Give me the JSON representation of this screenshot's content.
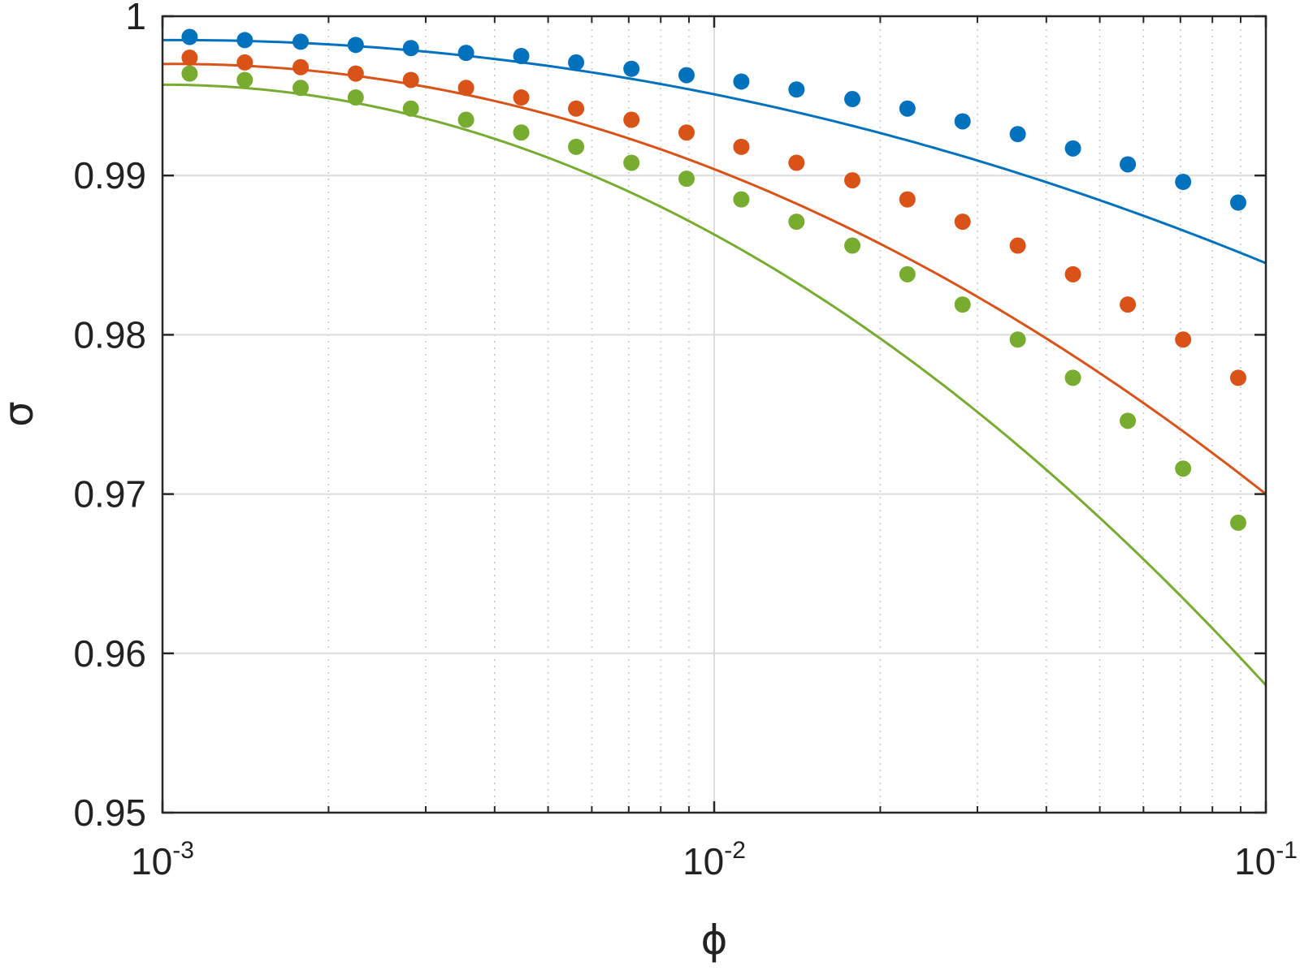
{
  "chart_data": {
    "type": "line",
    "xlabel": "ϕ",
    "ylabel": "σ",
    "xscale": "log",
    "xlim": [
      0.001,
      0.1
    ],
    "ylim": [
      0.95,
      1.0
    ],
    "grid": true,
    "x_ticks": [
      {
        "base": "10",
        "exp": "-3",
        "value": 0.001
      },
      {
        "base": "10",
        "exp": "-2",
        "value": 0.01
      },
      {
        "base": "10",
        "exp": "-1",
        "value": 0.1
      }
    ],
    "y_ticks": [
      {
        "label": "0.95",
        "value": 0.95
      },
      {
        "label": "0.96",
        "value": 0.96
      },
      {
        "label": "0.97",
        "value": 0.97
      },
      {
        "label": "0.98",
        "value": 0.98
      },
      {
        "label": "0.99",
        "value": 0.99
      },
      {
        "label": "1",
        "value": 1.0
      }
    ],
    "series": [
      {
        "color": "#0072BD",
        "line": {
          "x": [
            0.001,
            0.01,
            0.1
          ],
          "y": [
            0.9985,
            0.9951,
            0.9845
          ]
        },
        "points": {
          "x": [
            0.00112,
            0.00141,
            0.00178,
            0.00224,
            0.00282,
            0.00355,
            0.00447,
            0.00562,
            0.00708,
            0.00891,
            0.0112,
            0.0141,
            0.0178,
            0.0224,
            0.0282,
            0.0355,
            0.0447,
            0.0562,
            0.0708,
            0.0891
          ],
          "y": [
            0.9987,
            0.9985,
            0.9984,
            0.9982,
            0.998,
            0.9977,
            0.9975,
            0.9971,
            0.9967,
            0.9963,
            0.9959,
            0.9954,
            0.9948,
            0.9942,
            0.9934,
            0.9926,
            0.9917,
            0.9907,
            0.9896,
            0.9883
          ]
        }
      },
      {
        "color": "#D95319",
        "line": {
          "x": [
            0.001,
            0.01,
            0.1
          ],
          "y": [
            0.997,
            0.9904,
            0.97
          ]
        },
        "points": {
          "x": [
            0.00112,
            0.00141,
            0.00178,
            0.00224,
            0.00282,
            0.00355,
            0.00447,
            0.00562,
            0.00708,
            0.00891,
            0.0112,
            0.0141,
            0.0178,
            0.0224,
            0.0282,
            0.0355,
            0.0447,
            0.0562,
            0.0708,
            0.0891
          ],
          "y": [
            0.9974,
            0.9971,
            0.9968,
            0.9964,
            0.996,
            0.9955,
            0.9949,
            0.9942,
            0.9935,
            0.9927,
            0.9918,
            0.9908,
            0.9897,
            0.9885,
            0.9871,
            0.9856,
            0.9838,
            0.9819,
            0.9797,
            0.9773
          ]
        }
      },
      {
        "color": "#77AC30",
        "line": {
          "x": [
            0.001,
            0.01,
            0.1
          ],
          "y": [
            0.9957,
            0.9863,
            0.958
          ]
        },
        "points": {
          "x": [
            0.00112,
            0.00141,
            0.00178,
            0.00224,
            0.00282,
            0.00355,
            0.00447,
            0.00562,
            0.00708,
            0.00891,
            0.0112,
            0.0141,
            0.0178,
            0.0224,
            0.0282,
            0.0355,
            0.0447,
            0.0562,
            0.0708,
            0.0891
          ],
          "y": [
            0.9964,
            0.996,
            0.9955,
            0.9949,
            0.9942,
            0.9935,
            0.9927,
            0.9918,
            0.9908,
            0.9898,
            0.9885,
            0.9871,
            0.9856,
            0.9838,
            0.9819,
            0.9797,
            0.9773,
            0.9746,
            0.9716,
            0.9682
          ]
        }
      }
    ]
  }
}
